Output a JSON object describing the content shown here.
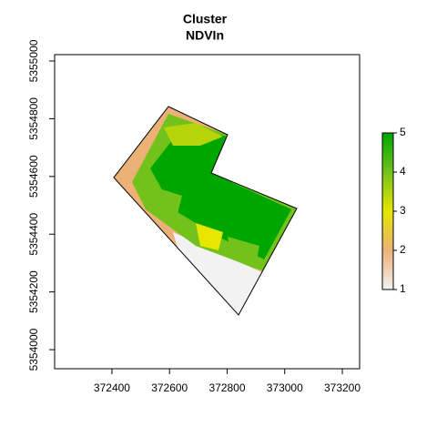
{
  "chart_data": {
    "type": "raster",
    "title": "Cluster",
    "subtitle": "NDVIn",
    "xlim": [
      372201,
      373260
    ],
    "ylim": [
      5353934,
      5355022
    ],
    "xticks": [
      372400,
      372600,
      372800,
      373000,
      373200
    ],
    "yticks": [
      5354000,
      5354200,
      5354400,
      5354600,
      5354800,
      5355000
    ],
    "colorbar": {
      "lim": [
        1,
        5
      ],
      "ticks": [
        1,
        2,
        3,
        4,
        5
      ],
      "colors": [
        "#f2f2f2",
        "#ecb176",
        "#e6e600",
        "#73c21c",
        "#00a600"
      ]
    }
  }
}
